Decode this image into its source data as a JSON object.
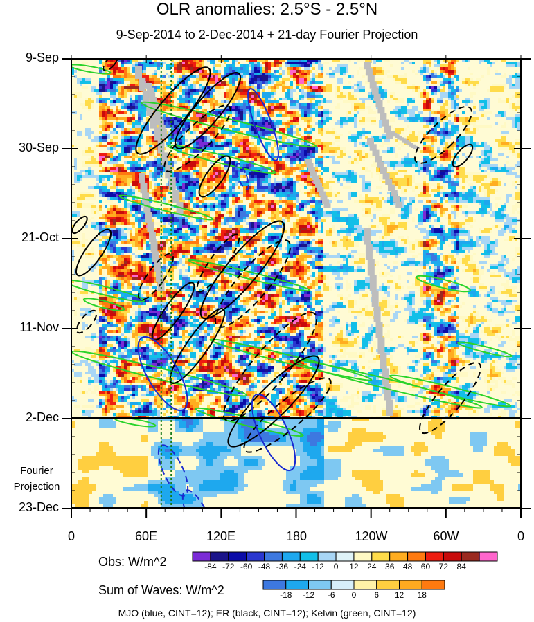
{
  "chart_data": {
    "type": "heatmap",
    "title": "OLR anomalies: 2.5°S - 2.5°N",
    "subtitle": "9-Sep-2014 to 2-Dec-2014 + 21-day Fourier Projection",
    "y_tick_labels": [
      "9-Sep",
      "30-Sep",
      "21-Oct",
      "11-Nov",
      "2-Dec",
      "23-Dec"
    ],
    "x_tick_labels": [
      "0",
      "60E",
      "120E",
      "180",
      "120W",
      "60W",
      "0"
    ],
    "x_range_degrees_east": [
      0,
      360
    ],
    "y_range": [
      "9-Sep-2014",
      "23-Dec-2014"
    ],
    "projection_start": "2-Dec",
    "projection_label": "Fourier Projection",
    "reference_longitudes": [
      72,
      80
    ],
    "obs_colorbar": {
      "label": "Obs: W/m^2",
      "levels": [
        -84,
        -72,
        -60,
        -48,
        -36,
        -24,
        -12,
        0,
        12,
        24,
        36,
        48,
        60,
        72,
        84
      ],
      "colors": [
        "#7b2bd6",
        "#1b148a",
        "#0b0ca8",
        "#2a37d0",
        "#3d78e0",
        "#1ea8ee",
        "#12bfe8",
        "#a8d6f5",
        "#dff3f8",
        "#fff9c4",
        "#ffdc4a",
        "#ffad20",
        "#ff7a10",
        "#ee1d10",
        "#c80b0b",
        "#9b2a20",
        "#ff66cc"
      ]
    },
    "waves_colorbar": {
      "label": "Sum of Waves: W/m^2",
      "levels": [
        -18,
        -12,
        -6,
        0,
        6,
        12,
        18
      ],
      "colors": [
        "#3d78e0",
        "#1ea8ee",
        "#7ec8f2",
        "#d6eefa",
        "#fff2a8",
        "#ffcf40",
        "#ffaa20",
        "#ff7a10"
      ]
    },
    "overlay_legend": "MJO (blue, CINT=12); ER (black, CINT=12); Kelvin (green, CINT=12)",
    "overlays": {
      "mjo_color": "#1a2ad0",
      "er_color": "#000000",
      "kelvin_color": "#2ad32a",
      "missing_color": "#bdbdbd"
    }
  }
}
